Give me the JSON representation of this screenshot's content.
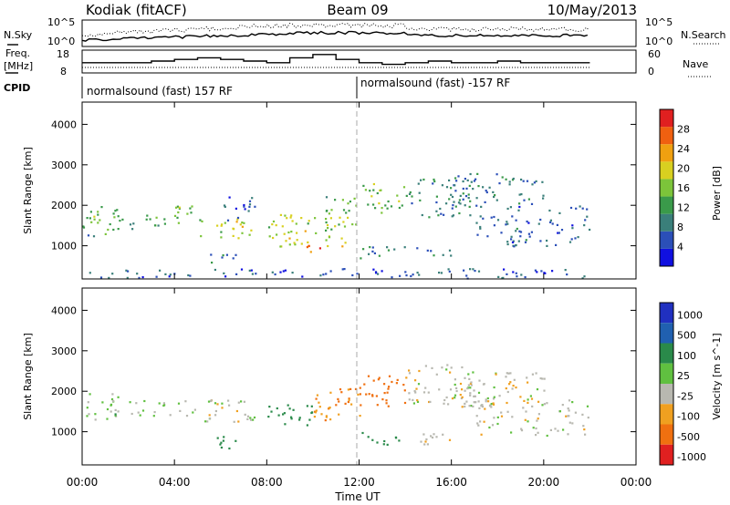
{
  "header": {
    "station": "Kodiak (fitACF)",
    "beam": "Beam 09",
    "date": "10/May/2013"
  },
  "summary_panel": {
    "nsky_label": "N.Sky",
    "nsearch_label": "N.Search",
    "counts_ticks": [
      "10^5",
      "10^0"
    ],
    "freq_label_line1": "Freq.",
    "freq_label_line2": "[MHz]",
    "freq_ticks": [
      "18",
      "8"
    ],
    "nave_label": "Nave",
    "nave_ticks": [
      "60",
      "0"
    ],
    "cpid_label": "CPID",
    "cpid_segments": [
      {
        "label": "normalsound (fast) 157 RF",
        "start_hour": 0.0
      },
      {
        "label": "normalsound (fast) -157 RF",
        "start_hour": 12.0
      }
    ]
  },
  "x_axis": {
    "label": "Time UT",
    "ticks": [
      "00:00",
      "04:00",
      "08:00",
      "12:00",
      "16:00",
      "20:00",
      "00:00"
    ],
    "range_hours": [
      0,
      24
    ]
  },
  "chart_data": [
    {
      "type": "heatmap",
      "ylabel": "Slant Range [km]",
      "yticks": [
        "1000",
        "2000",
        "3000",
        "4000"
      ],
      "ylim": [
        180,
        4550
      ],
      "xlim_hours": [
        0,
        24
      ],
      "colorbar": {
        "label": "Power [dB]",
        "ticks": [
          "4",
          "8",
          "12",
          "16",
          "20",
          "24",
          "28"
        ],
        "range": [
          0,
          32
        ],
        "colors": [
          "#1010e0",
          "#2b4fb8",
          "#3a7f7a",
          "#3a9a4a",
          "#7cc43a",
          "#d8d020",
          "#f0a010",
          "#f06010",
          "#e02020"
        ]
      },
      "scatter_regions": [
        {
          "t": [
            0.0,
            1.6
          ],
          "r": [
            1300,
            2000
          ],
          "v": 14
        },
        {
          "t": [
            0.2,
            0.6
          ],
          "r": [
            1000,
            1300
          ],
          "v": 8
        },
        {
          "t": [
            1.2,
            3.6
          ],
          "r": [
            1400,
            1800
          ],
          "v": 12
        },
        {
          "t": [
            3.5,
            5.2
          ],
          "r": [
            1500,
            2000
          ],
          "v": 14
        },
        {
          "t": [
            4.5,
            7.5
          ],
          "r": [
            1200,
            1700
          ],
          "v": 18
        },
        {
          "t": [
            5.5,
            6.8
          ],
          "r": [
            600,
            900
          ],
          "v": 8
        },
        {
          "t": [
            6.0,
            7.5
          ],
          "r": [
            1600,
            2400
          ],
          "v": 6
        },
        {
          "t": [
            8.0,
            11.5
          ],
          "r": [
            1000,
            1800
          ],
          "v": 18
        },
        {
          "t": [
            9.5,
            10.5
          ],
          "r": [
            800,
            1100
          ],
          "v": 26
        },
        {
          "t": [
            10.5,
            12.0
          ],
          "r": [
            1400,
            2300
          ],
          "v": 14
        },
        {
          "t": [
            12.0,
            14.0
          ],
          "r": [
            1800,
            2600
          ],
          "v": 16
        },
        {
          "t": [
            12.0,
            14.0
          ],
          "r": [
            700,
            1000
          ],
          "v": 8
        },
        {
          "t": [
            14.0,
            17.0
          ],
          "r": [
            1700,
            2700
          ],
          "v": 10
        },
        {
          "t": [
            14.0,
            16.0
          ],
          "r": [
            700,
            1000
          ],
          "v": 8
        },
        {
          "t": [
            16.0,
            20.0
          ],
          "r": [
            2000,
            2800
          ],
          "v": 8
        },
        {
          "t": [
            17.0,
            22.0
          ],
          "r": [
            1000,
            2000
          ],
          "v": 7
        },
        {
          "t": [
            0.0,
            22.0
          ],
          "r": [
            200,
            450
          ],
          "v": 6
        }
      ]
    },
    {
      "type": "heatmap",
      "ylabel": "Slant Range [km]",
      "yticks": [
        "1000",
        "2000",
        "3000",
        "4000"
      ],
      "ylim": [
        180,
        4550
      ],
      "xlim_hours": [
        0,
        24
      ],
      "colorbar": {
        "label": "Velocity [m s^-1]",
        "ticks": [
          "1000",
          "500",
          "100",
          "25",
          "-25",
          "-100",
          "-500",
          "-1000"
        ],
        "colors": [
          "#2030c0",
          "#2060b0",
          "#2a8a4a",
          "#60c040",
          "#b8b8b0",
          "#f0a020",
          "#f07010",
          "#e02020"
        ]
      },
      "scatter_regions": [
        {
          "t": [
            0.0,
            1.6
          ],
          "r": [
            1300,
            2000
          ],
          "v": 25
        },
        {
          "t": [
            1.2,
            3.6
          ],
          "r": [
            1400,
            1800
          ],
          "v": 25
        },
        {
          "t": [
            3.5,
            7.5
          ],
          "r": [
            1200,
            1800
          ],
          "v": 0
        },
        {
          "t": [
            5.5,
            6.8
          ],
          "r": [
            600,
            900
          ],
          "v": 100
        },
        {
          "t": [
            8.0,
            10.0
          ],
          "r": [
            1100,
            1700
          ],
          "v": 100
        },
        {
          "t": [
            10.0,
            12.0
          ],
          "r": [
            1300,
            2100
          ],
          "v": -100
        },
        {
          "t": [
            12.0,
            14.0
          ],
          "r": [
            1600,
            2400
          ],
          "v": -300
        },
        {
          "t": [
            12.0,
            14.0
          ],
          "r": [
            700,
            1000
          ],
          "v": 200
        },
        {
          "t": [
            14.0,
            17.0
          ],
          "r": [
            1700,
            2700
          ],
          "v": 0
        },
        {
          "t": [
            14.0,
            16.0
          ],
          "r": [
            700,
            1000
          ],
          "v": 0
        },
        {
          "t": [
            16.0,
            20.0
          ],
          "r": [
            1600,
            2500
          ],
          "v": 0
        },
        {
          "t": [
            17.0,
            22.0
          ],
          "r": [
            900,
            1800
          ],
          "v": 0
        }
      ]
    }
  ]
}
